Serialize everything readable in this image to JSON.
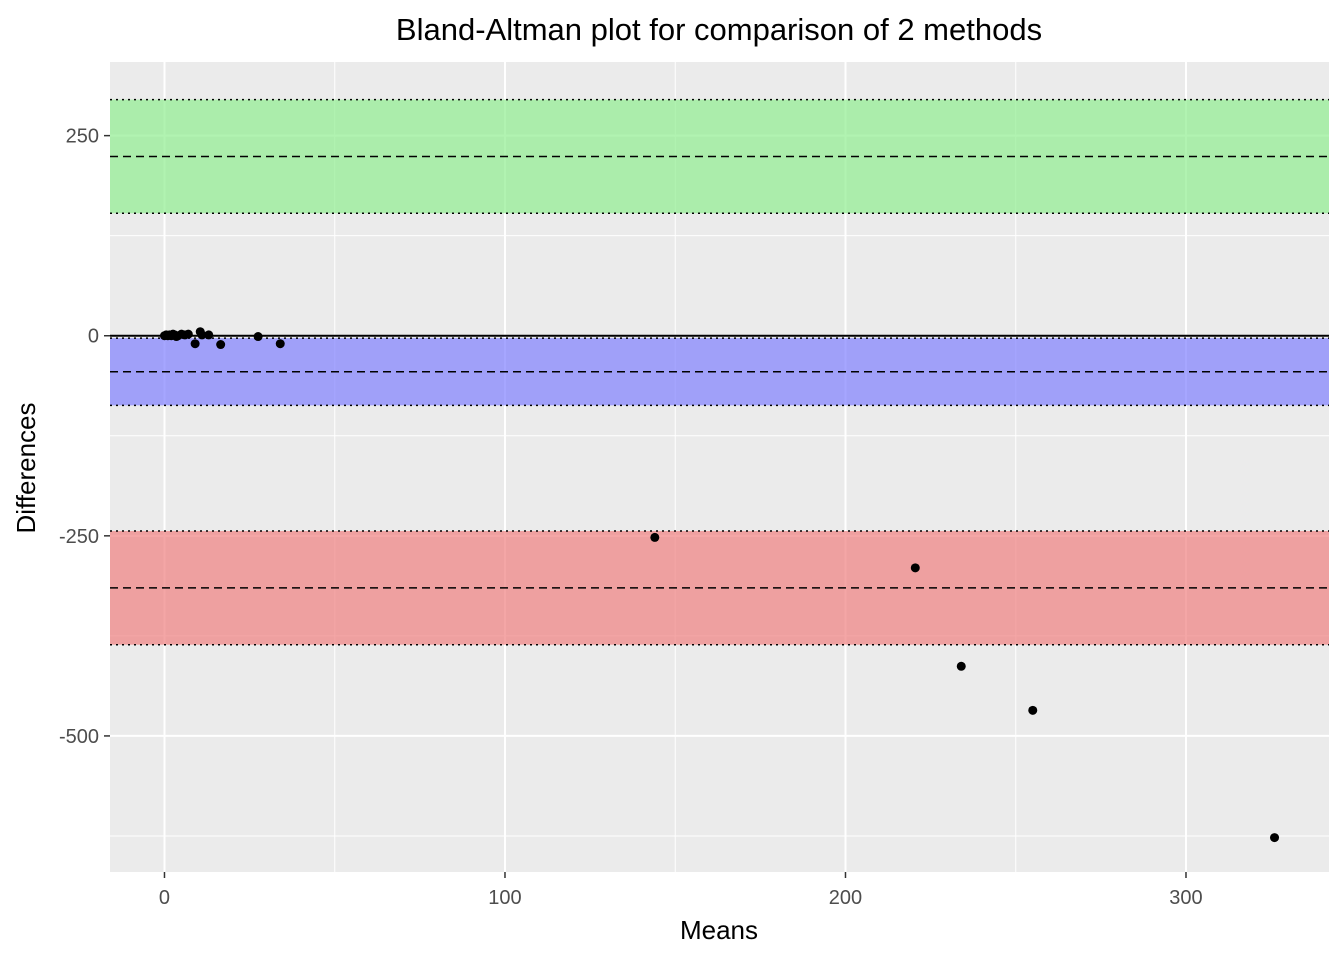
{
  "chart_data": {
    "type": "scatter",
    "title": "Bland-Altman plot for comparison of 2 methods",
    "xlabel": "Means",
    "ylabel": "Differences",
    "xlim": [
      -16,
      342
    ],
    "ylim": [
      -670,
      342
    ],
    "x_ticks": [
      0,
      100,
      200,
      300
    ],
    "y_ticks": [
      -500,
      -250,
      0,
      250
    ],
    "x_tick_labels": [
      "0",
      "100",
      "200",
      "300"
    ],
    "y_tick_labels": [
      "-500",
      "-250",
      "0",
      "250"
    ],
    "grid": true,
    "panel_background": "#ebebeb",
    "zero_line": 0,
    "bands": [
      {
        "name": "upper",
        "color": "#90ee90",
        "mean": 224,
        "lower": 153,
        "upper": 295
      },
      {
        "name": "bias",
        "color": "#8080ff",
        "mean": -45,
        "lower": -87,
        "upper": -3
      },
      {
        "name": "lower",
        "color": "#f08080",
        "mean": -315,
        "lower": -386,
        "upper": -244
      }
    ],
    "points": [
      {
        "x": 0,
        "y": 0
      },
      {
        "x": 0.5,
        "y": 1
      },
      {
        "x": 1,
        "y": 0
      },
      {
        "x": 1.5,
        "y": 1
      },
      {
        "x": 2,
        "y": 0
      },
      {
        "x": 2.5,
        "y": 2
      },
      {
        "x": 3,
        "y": 1
      },
      {
        "x": 3.5,
        "y": -1
      },
      {
        "x": 4,
        "y": 0
      },
      {
        "x": 5,
        "y": 2
      },
      {
        "x": 6,
        "y": 1
      },
      {
        "x": 7,
        "y": 2
      },
      {
        "x": 9,
        "y": -10
      },
      {
        "x": 10.5,
        "y": 5
      },
      {
        "x": 11,
        "y": 1
      },
      {
        "x": 13,
        "y": 1
      },
      {
        "x": 16.5,
        "y": -11
      },
      {
        "x": 27.5,
        "y": -1
      },
      {
        "x": 34,
        "y": -10
      },
      {
        "x": 144,
        "y": -252
      },
      {
        "x": 220.5,
        "y": -290
      },
      {
        "x": 234,
        "y": -413
      },
      {
        "x": 255,
        "y": -468
      },
      {
        "x": 326,
        "y": -627
      }
    ]
  }
}
